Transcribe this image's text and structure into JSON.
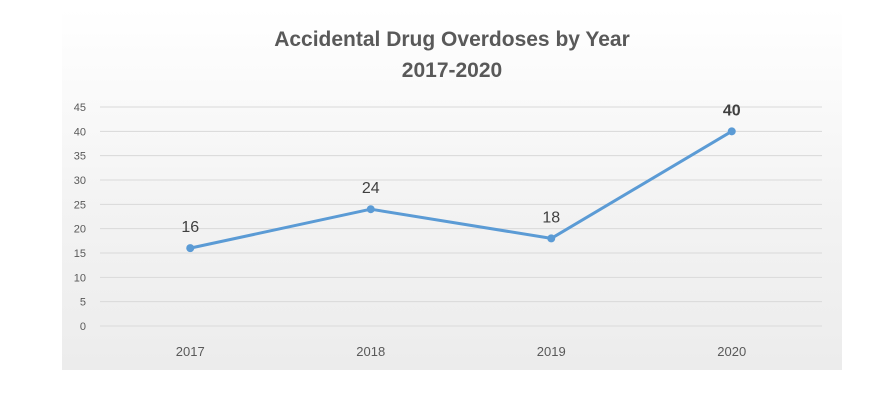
{
  "chart_data": {
    "type": "line",
    "title": "Accidental Drug Overdoses by Year",
    "subtitle": "2017-2020",
    "categories": [
      "2017",
      "2018",
      "2019",
      "2020"
    ],
    "series": [
      {
        "values": [
          16,
          24,
          18,
          40
        ],
        "color": "#5b9bd5"
      }
    ],
    "data_labels": [
      "16",
      "24",
      "18",
      "40"
    ],
    "ylim": [
      0,
      45
    ],
    "yticks": [
      0,
      5,
      10,
      15,
      20,
      25,
      30,
      35,
      40,
      45
    ],
    "grid": true,
    "legend": "none",
    "gridline_color": "#d9d9d9",
    "tick_label_color": "#595959"
  }
}
